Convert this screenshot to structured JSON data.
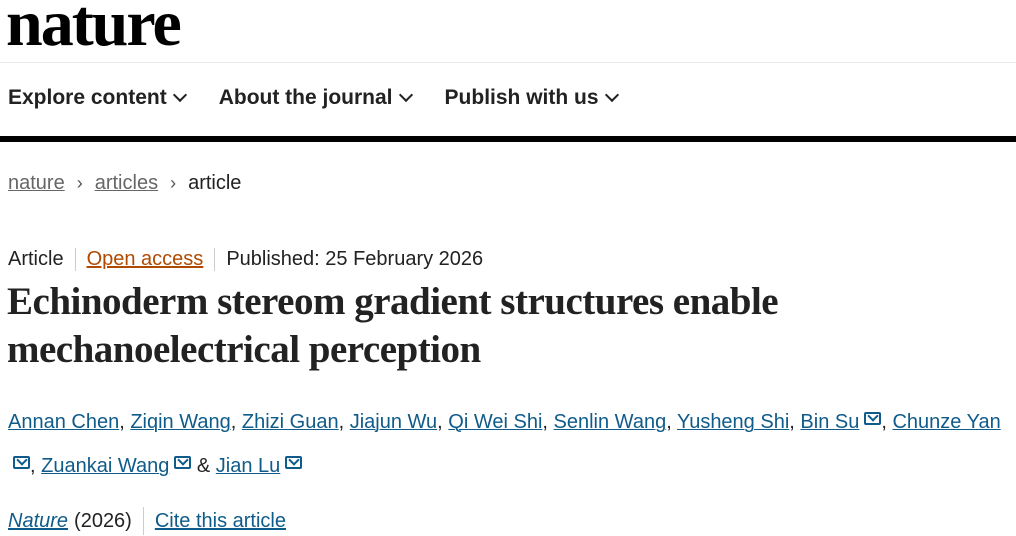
{
  "header": {
    "logo": "nature"
  },
  "nav": [
    {
      "label": "Explore content"
    },
    {
      "label": "About the journal"
    },
    {
      "label": "Publish with us"
    }
  ],
  "breadcrumb": [
    {
      "label": "nature"
    },
    {
      "label": "articles"
    },
    {
      "label": "article"
    }
  ],
  "article": {
    "type": "Article",
    "access": "Open access",
    "published": "Published: 25 February 2026",
    "title": "Echinoderm stereom gradient structures enable mechanoelectrical perception",
    "authors": [
      {
        "name": "Annan Chen",
        "corresponding": false
      },
      {
        "name": "Ziqin Wang",
        "corresponding": false
      },
      {
        "name": "Zhizi Guan",
        "corresponding": false
      },
      {
        "name": "Jiajun Wu",
        "corresponding": false
      },
      {
        "name": "Qi Wei Shi",
        "corresponding": false
      },
      {
        "name": "Senlin Wang",
        "corresponding": false
      },
      {
        "name": "Yusheng Shi",
        "corresponding": false
      },
      {
        "name": "Bin Su",
        "corresponding": true
      },
      {
        "name": "Chunze Yan",
        "corresponding": true
      },
      {
        "name": "Zuankai Wang",
        "corresponding": true
      },
      {
        "name": "Jian Lu",
        "corresponding": true
      }
    ],
    "journal": "Nature",
    "year": "(2026)",
    "cite_label": "Cite this article"
  },
  "colors": {
    "link": "#0f5b8a",
    "open_access": "#b04a00"
  },
  "icons": {
    "mail": "envelope-icon",
    "chevron": "chevron-down-icon",
    "separator": "chevron-right-icon"
  }
}
